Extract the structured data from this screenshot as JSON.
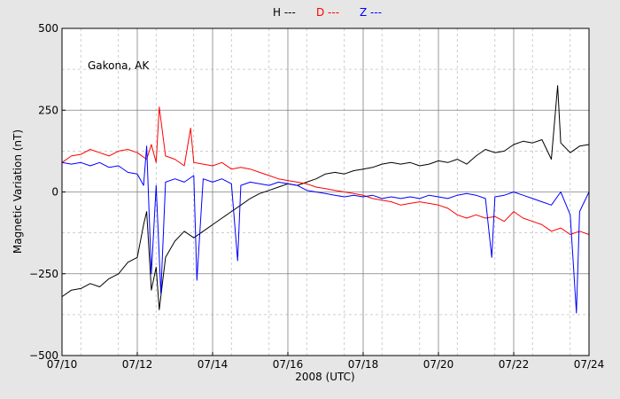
{
  "chart_data": {
    "type": "line",
    "xlabel": "2008 (UTC)",
    "ylabel": "Magnetic Variation (nT)",
    "annotation": "Gakona, AK",
    "xlim": [
      "07/10",
      "07/24"
    ],
    "ylim": [
      -500,
      500
    ],
    "x_ticks": [
      "07/10",
      "07/12",
      "07/14",
      "07/16",
      "07/18",
      "07/20",
      "07/22",
      "07/24"
    ],
    "y_ticks": [
      -500,
      -250,
      0,
      250,
      500
    ],
    "y_tick_labels": [
      "−500",
      "−250",
      "0",
      "250",
      "500"
    ],
    "grid": true,
    "legend_placement": "top-center",
    "legend": [
      {
        "label": "H ---",
        "color": "#000000"
      },
      {
        "label": "D ---",
        "color": "#ff0000"
      },
      {
        "label": "Z ---",
        "color": "#0000ff"
      }
    ],
    "series": [
      {
        "key": "H",
        "color": "#000000",
        "points": [
          [
            "07/10 00:00",
            -320
          ],
          [
            "07/10 06:00",
            -300
          ],
          [
            "07/10 12:00",
            -295
          ],
          [
            "07/10 18:00",
            -280
          ],
          [
            "07/11 00:00",
            -290
          ],
          [
            "07/11 06:00",
            -265
          ],
          [
            "07/11 12:00",
            -250
          ],
          [
            "07/11 18:00",
            -215
          ],
          [
            "07/12 00:00",
            -200
          ],
          [
            "07/12 04:00",
            -100
          ],
          [
            "07/12 06:00",
            -60
          ],
          [
            "07/12 09:00",
            -300
          ],
          [
            "07/12 12:00",
            -230
          ],
          [
            "07/12 14:00",
            -360
          ],
          [
            "07/12 18:00",
            -200
          ],
          [
            "07/13 00:00",
            -150
          ],
          [
            "07/13 06:00",
            -120
          ],
          [
            "07/13 12:00",
            -140
          ],
          [
            "07/13 18:00",
            -120
          ],
          [
            "07/14 00:00",
            -100
          ],
          [
            "07/14 06:00",
            -80
          ],
          [
            "07/14 12:00",
            -60
          ],
          [
            "07/14 18:00",
            -40
          ],
          [
            "07/15 00:00",
            -20
          ],
          [
            "07/15 06:00",
            -5
          ],
          [
            "07/15 12:00",
            5
          ],
          [
            "07/15 18:00",
            15
          ],
          [
            "07/16 00:00",
            25
          ],
          [
            "07/16 06:00",
            20
          ],
          [
            "07/16 12:00",
            30
          ],
          [
            "07/16 18:00",
            40
          ],
          [
            "07/17 00:00",
            55
          ],
          [
            "07/17 06:00",
            60
          ],
          [
            "07/17 12:00",
            55
          ],
          [
            "07/17 18:00",
            65
          ],
          [
            "07/18 00:00",
            70
          ],
          [
            "07/18 06:00",
            75
          ],
          [
            "07/18 12:00",
            85
          ],
          [
            "07/18 18:00",
            90
          ],
          [
            "07/19 00:00",
            85
          ],
          [
            "07/19 06:00",
            90
          ],
          [
            "07/19 12:00",
            80
          ],
          [
            "07/19 18:00",
            85
          ],
          [
            "07/20 00:00",
            95
          ],
          [
            "07/20 06:00",
            90
          ],
          [
            "07/20 12:00",
            100
          ],
          [
            "07/20 18:00",
            85
          ],
          [
            "07/21 00:00",
            110
          ],
          [
            "07/21 06:00",
            130
          ],
          [
            "07/21 12:00",
            120
          ],
          [
            "07/21 18:00",
            125
          ],
          [
            "07/22 00:00",
            145
          ],
          [
            "07/22 06:00",
            155
          ],
          [
            "07/22 12:00",
            150
          ],
          [
            "07/22 18:00",
            160
          ],
          [
            "07/23 00:00",
            100
          ],
          [
            "07/23 04:00",
            325
          ],
          [
            "07/23 06:00",
            150
          ],
          [
            "07/23 12:00",
            120
          ],
          [
            "07/23 18:00",
            140
          ],
          [
            "07/24 00:00",
            145
          ]
        ]
      },
      {
        "key": "D",
        "color": "#ff0000",
        "points": [
          [
            "07/10 00:00",
            90
          ],
          [
            "07/10 06:00",
            110
          ],
          [
            "07/10 12:00",
            115
          ],
          [
            "07/10 18:00",
            130
          ],
          [
            "07/11 00:00",
            120
          ],
          [
            "07/11 06:00",
            110
          ],
          [
            "07/11 12:00",
            125
          ],
          [
            "07/11 18:00",
            130
          ],
          [
            "07/12 00:00",
            120
          ],
          [
            "07/12 06:00",
            100
          ],
          [
            "07/12 09:00",
            145
          ],
          [
            "07/12 12:00",
            90
          ],
          [
            "07/12 14:00",
            260
          ],
          [
            "07/12 18:00",
            110
          ],
          [
            "07/13 00:00",
            100
          ],
          [
            "07/13 06:00",
            80
          ],
          [
            "07/13 10:00",
            195
          ],
          [
            "07/13 12:00",
            90
          ],
          [
            "07/13 18:00",
            85
          ],
          [
            "07/14 00:00",
            80
          ],
          [
            "07/14 06:00",
            90
          ],
          [
            "07/14 12:00",
            70
          ],
          [
            "07/14 18:00",
            75
          ],
          [
            "07/15 00:00",
            70
          ],
          [
            "07/15 06:00",
            60
          ],
          [
            "07/15 12:00",
            50
          ],
          [
            "07/15 18:00",
            40
          ],
          [
            "07/16 00:00",
            35
          ],
          [
            "07/16 06:00",
            30
          ],
          [
            "07/16 12:00",
            25
          ],
          [
            "07/16 18:00",
            15
          ],
          [
            "07/17 00:00",
            10
          ],
          [
            "07/17 06:00",
            5
          ],
          [
            "07/17 12:00",
            0
          ],
          [
            "07/17 18:00",
            -5
          ],
          [
            "07/18 00:00",
            -10
          ],
          [
            "07/18 06:00",
            -20
          ],
          [
            "07/18 12:00",
            -25
          ],
          [
            "07/18 18:00",
            -30
          ],
          [
            "07/19 00:00",
            -40
          ],
          [
            "07/19 06:00",
            -35
          ],
          [
            "07/19 12:00",
            -30
          ],
          [
            "07/19 18:00",
            -35
          ],
          [
            "07/20 00:00",
            -40
          ],
          [
            "07/20 06:00",
            -50
          ],
          [
            "07/20 12:00",
            -70
          ],
          [
            "07/20 18:00",
            -80
          ],
          [
            "07/21 00:00",
            -70
          ],
          [
            "07/21 06:00",
            -80
          ],
          [
            "07/21 12:00",
            -75
          ],
          [
            "07/21 18:00",
            -90
          ],
          [
            "07/22 00:00",
            -60
          ],
          [
            "07/22 06:00",
            -80
          ],
          [
            "07/22 12:00",
            -90
          ],
          [
            "07/22 18:00",
            -100
          ],
          [
            "07/23 00:00",
            -120
          ],
          [
            "07/23 06:00",
            -110
          ],
          [
            "07/23 12:00",
            -130
          ],
          [
            "07/23 18:00",
            -120
          ],
          [
            "07/24 00:00",
            -130
          ]
        ]
      },
      {
        "key": "Z",
        "color": "#0000ff",
        "points": [
          [
            "07/10 00:00",
            90
          ],
          [
            "07/10 06:00",
            85
          ],
          [
            "07/10 12:00",
            90
          ],
          [
            "07/10 18:00",
            80
          ],
          [
            "07/11 00:00",
            90
          ],
          [
            "07/11 06:00",
            75
          ],
          [
            "07/11 12:00",
            80
          ],
          [
            "07/11 18:00",
            60
          ],
          [
            "07/12 00:00",
            55
          ],
          [
            "07/12 04:00",
            20
          ],
          [
            "07/12 06:00",
            140
          ],
          [
            "07/12 09:00",
            -250
          ],
          [
            "07/12 12:00",
            20
          ],
          [
            "07/12 15:00",
            -310
          ],
          [
            "07/12 18:00",
            30
          ],
          [
            "07/13 00:00",
            40
          ],
          [
            "07/13 06:00",
            30
          ],
          [
            "07/13 12:00",
            50
          ],
          [
            "07/13 14:00",
            -270
          ],
          [
            "07/13 18:00",
            40
          ],
          [
            "07/14 00:00",
            30
          ],
          [
            "07/14 06:00",
            40
          ],
          [
            "07/14 12:00",
            25
          ],
          [
            "07/14 16:00",
            -210
          ],
          [
            "07/14 18:00",
            20
          ],
          [
            "07/15 00:00",
            30
          ],
          [
            "07/15 06:00",
            25
          ],
          [
            "07/15 12:00",
            20
          ],
          [
            "07/15 18:00",
            30
          ],
          [
            "07/16 00:00",
            25
          ],
          [
            "07/16 06:00",
            20
          ],
          [
            "07/16 12:00",
            5
          ],
          [
            "07/16 18:00",
            0
          ],
          [
            "07/17 00:00",
            -5
          ],
          [
            "07/17 06:00",
            -10
          ],
          [
            "07/17 12:00",
            -15
          ],
          [
            "07/17 18:00",
            -10
          ],
          [
            "07/18 00:00",
            -15
          ],
          [
            "07/18 06:00",
            -10
          ],
          [
            "07/18 12:00",
            -20
          ],
          [
            "07/18 18:00",
            -15
          ],
          [
            "07/19 00:00",
            -20
          ],
          [
            "07/19 06:00",
            -15
          ],
          [
            "07/19 12:00",
            -20
          ],
          [
            "07/19 18:00",
            -10
          ],
          [
            "07/20 00:00",
            -15
          ],
          [
            "07/20 06:00",
            -20
          ],
          [
            "07/20 12:00",
            -10
          ],
          [
            "07/20 18:00",
            -5
          ],
          [
            "07/21 00:00",
            -10
          ],
          [
            "07/21 06:00",
            -20
          ],
          [
            "07/21 10:00",
            -200
          ],
          [
            "07/21 12:00",
            -15
          ],
          [
            "07/21 18:00",
            -10
          ],
          [
            "07/22 00:00",
            0
          ],
          [
            "07/22 06:00",
            -10
          ],
          [
            "07/22 12:00",
            -20
          ],
          [
            "07/22 18:00",
            -30
          ],
          [
            "07/23 00:00",
            -40
          ],
          [
            "07/23 06:00",
            0
          ],
          [
            "07/23 12:00",
            -70
          ],
          [
            "07/23 16:00",
            -370
          ],
          [
            "07/23 18:00",
            -60
          ],
          [
            "07/24 00:00",
            0
          ]
        ]
      }
    ]
  }
}
